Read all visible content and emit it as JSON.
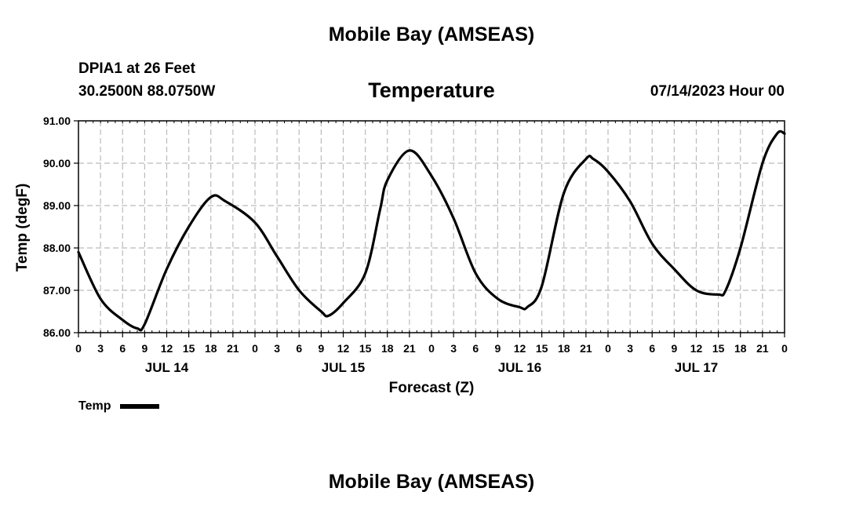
{
  "header": {
    "title": "Mobile Bay (AMSEAS)",
    "station": "DPIA1 at 26 Feet",
    "coords": "30.2500N  88.0750W",
    "variable": "Temperature",
    "datetime": "07/14/2023 Hour 00"
  },
  "footer": {
    "title": "Mobile Bay (AMSEAS)"
  },
  "legend": {
    "label": "Temp"
  },
  "chart_data": {
    "type": "line",
    "title": "Temperature",
    "xlabel": "Forecast (Z)",
    "ylabel": "Temp (degF)",
    "ylim": [
      86.0,
      91.0
    ],
    "yticks": [
      "86.00",
      "87.00",
      "88.00",
      "89.00",
      "90.00",
      "91.00"
    ],
    "xlim": [
      "07/14/2023 00Z",
      "07/18/2023 00Z"
    ],
    "xtick_labels": [
      "0",
      "3",
      "6",
      "9",
      "12",
      "15",
      "18",
      "21",
      "0",
      "3",
      "6",
      "9",
      "12",
      "15",
      "18",
      "21",
      "0",
      "3",
      "6",
      "9",
      "12",
      "15",
      "18",
      "21",
      "0",
      "3",
      "6",
      "9",
      "12",
      "15",
      "18",
      "21",
      "0"
    ],
    "day_labels": [
      "JUL 14",
      "JUL 15",
      "JUL 16",
      "JUL 17"
    ],
    "grid": true,
    "legend_position": "bottom-left",
    "color": "#000000",
    "series": [
      {
        "name": "Temp",
        "x": [
          0,
          3,
          6,
          8,
          9,
          12,
          15,
          18,
          20,
          24,
          27,
          30,
          33,
          34,
          36,
          39,
          41,
          42,
          45,
          48,
          51,
          54,
          57,
          60,
          61,
          63,
          66,
          69,
          70,
          72,
          75,
          78,
          81,
          84,
          87,
          88,
          90,
          93,
          95,
          96
        ],
        "values": [
          87.9,
          86.8,
          86.3,
          86.1,
          86.2,
          87.5,
          88.5,
          89.2,
          89.1,
          88.6,
          87.8,
          87.0,
          86.5,
          86.4,
          86.7,
          87.4,
          88.9,
          89.6,
          90.3,
          89.7,
          88.7,
          87.4,
          86.8,
          86.6,
          86.6,
          87.1,
          89.3,
          90.1,
          90.1,
          89.8,
          89.1,
          88.1,
          87.5,
          87.0,
          86.9,
          87.0,
          88.0,
          90.0,
          90.7,
          90.7
        ]
      }
    ]
  }
}
